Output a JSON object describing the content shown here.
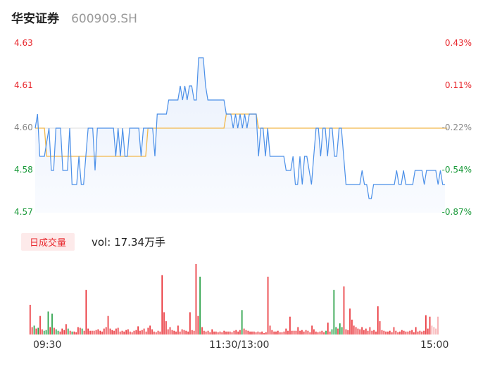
{
  "header": {
    "stock_name": "华安证券",
    "stock_code": "600909.SH"
  },
  "colors": {
    "up": "#e8262c",
    "down": "#1a9a3a",
    "flat": "#888888",
    "price_line": "#4a8fe8",
    "avg_line": "#f2b84b"
  },
  "volume": {
    "badge": "日成交量",
    "label": "vol:",
    "value": "17.34万手"
  },
  "chart_data": [
    {
      "type": "line",
      "xlabel": "",
      "ylabel": "",
      "x_ticks": [
        "09:30",
        "11:30/13:00",
        "15:00"
      ],
      "y_ticks_left": [
        "4.63",
        "4.61",
        "4.60",
        "4.58",
        "4.57"
      ],
      "y_ticks_right": [
        "0.43%",
        "0.11%",
        "-0.22%",
        "-0.54%",
        "-0.87%"
      ],
      "ylim": [
        4.57,
        4.63
      ],
      "prev_close": 4.6,
      "series": [
        {
          "values": [
            4.6,
            4.605,
            4.59,
            4.59,
            4.59,
            4.595,
            4.6,
            4.585,
            4.585,
            4.6,
            4.6,
            4.6,
            4.585,
            4.585,
            4.585,
            4.6,
            4.58,
            4.58,
            4.58,
            4.59,
            4.58,
            4.58,
            4.59,
            4.6,
            4.6,
            4.6,
            4.585,
            4.6,
            4.6,
            4.6,
            4.6,
            4.6,
            4.6,
            4.6,
            4.6,
            4.59,
            4.6,
            4.59,
            4.6,
            4.59,
            4.59,
            4.6,
            4.6,
            4.6,
            4.6,
            4.6,
            4.59,
            4.6,
            4.6,
            4.6,
            4.6,
            4.6,
            4.59,
            4.605,
            4.605,
            4.605,
            4.605,
            4.605,
            4.61,
            4.61,
            4.61,
            4.61,
            4.61,
            4.615,
            4.61,
            4.615,
            4.61,
            4.615,
            4.615,
            4.61,
            4.61,
            4.625,
            4.625,
            4.625,
            4.615,
            4.61,
            4.61,
            4.61,
            4.61,
            4.61,
            4.61,
            4.61,
            4.61,
            4.605,
            4.605,
            4.605,
            4.6,
            4.605,
            4.6,
            4.605,
            4.6,
            4.605,
            4.6,
            4.605,
            4.605,
            4.605,
            4.605,
            4.59,
            4.6,
            4.6,
            4.59,
            4.6,
            4.59,
            4.59,
            4.59,
            4.59,
            4.59,
            4.59,
            4.59,
            4.585,
            4.585,
            4.585,
            4.59,
            4.58,
            4.58,
            4.59,
            4.58,
            4.59,
            4.59,
            4.585,
            4.58,
            4.59,
            4.6,
            4.6,
            4.59,
            4.6,
            4.6,
            4.59,
            4.6,
            4.6,
            4.59,
            4.59,
            4.6,
            4.6,
            4.59,
            4.58,
            4.58,
            4.58,
            4.58,
            4.58,
            4.58,
            4.58,
            4.585,
            4.58,
            4.58,
            4.575,
            4.575,
            4.58,
            4.58,
            4.58,
            4.58,
            4.58,
            4.58,
            4.58,
            4.58,
            4.58,
            4.58,
            4.585,
            4.58,
            4.58,
            4.585,
            4.58,
            4.58,
            4.58,
            4.58,
            4.585,
            4.585,
            4.585,
            4.585,
            4.58,
            4.585,
            4.585,
            4.585,
            4.585,
            4.585,
            4.58,
            4.585,
            4.58,
            4.58
          ]
        },
        {
          "values": [
            4.6,
            4.6,
            4.6,
            4.6,
            4.6,
            4.59,
            4.59,
            4.59,
            4.59,
            4.59,
            4.59,
            4.59,
            4.59,
            4.59,
            4.59,
            4.59,
            4.59,
            4.59,
            4.59,
            4.59,
            4.59,
            4.59,
            4.59,
            4.59,
            4.59,
            4.59,
            4.59,
            4.59,
            4.59,
            4.59,
            4.59,
            4.59,
            4.59,
            4.59,
            4.59,
            4.59,
            4.59,
            4.59,
            4.59,
            4.59,
            4.59,
            4.59,
            4.59,
            4.59,
            4.59,
            4.59,
            4.59,
            4.59,
            4.59,
            4.6,
            4.6,
            4.6,
            4.6,
            4.6,
            4.6,
            4.6,
            4.6,
            4.6,
            4.6,
            4.6,
            4.6,
            4.6,
            4.6,
            4.6,
            4.6,
            4.6,
            4.6,
            4.6,
            4.6,
            4.6,
            4.6,
            4.6,
            4.6,
            4.6,
            4.6,
            4.6,
            4.6,
            4.6,
            4.6,
            4.6,
            4.6,
            4.6,
            4.6,
            4.605,
            4.605,
            4.605,
            4.605,
            4.605,
            4.605,
            4.605,
            4.605,
            4.605,
            4.605,
            4.605,
            4.605,
            4.605,
            4.605,
            4.6,
            4.6,
            4.6,
            4.6,
            4.6,
            4.6,
            4.6,
            4.6,
            4.6,
            4.6,
            4.6,
            4.6,
            4.6,
            4.6,
            4.6,
            4.6,
            4.6,
            4.6,
            4.6,
            4.6,
            4.6,
            4.6,
            4.6,
            4.6,
            4.6,
            4.6,
            4.6,
            4.6,
            4.6,
            4.6,
            4.6,
            4.6,
            4.6,
            4.6,
            4.6,
            4.6,
            4.6,
            4.6,
            4.6,
            4.6,
            4.6,
            4.6,
            4.6,
            4.6,
            4.6,
            4.6,
            4.6,
            4.6,
            4.6,
            4.6,
            4.6,
            4.6,
            4.6,
            4.6,
            4.6,
            4.6,
            4.6,
            4.6,
            4.6,
            4.6,
            4.6,
            4.6,
            4.6,
            4.6,
            4.6,
            4.6,
            4.6,
            4.6,
            4.6,
            4.6,
            4.6,
            4.6,
            4.6,
            4.6,
            4.6,
            4.6,
            4.6,
            4.6,
            4.6,
            4.6,
            4.6,
            4.6,
            4.6
          ]
        }
      ]
    },
    {
      "type": "bar",
      "values": [
        40,
        10,
        12,
        8,
        9,
        25,
        7,
        5,
        6,
        31,
        10,
        28,
        9,
        7,
        5,
        4,
        8,
        6,
        14,
        8,
        5,
        4,
        4,
        3,
        10,
        9,
        8,
        5,
        60,
        8,
        5,
        5,
        5,
        6,
        7,
        5,
        4,
        8,
        10,
        25,
        8,
        6,
        5,
        8,
        9,
        4,
        5,
        4,
        6,
        7,
        4,
        3,
        5,
        6,
        11,
        5,
        6,
        8,
        4,
        9,
        12,
        7,
        4,
        3,
        5,
        4,
        80,
        30,
        18,
        7,
        10,
        6,
        5,
        4,
        12,
        4,
        7,
        6,
        5,
        4,
        30,
        6,
        5,
        95,
        25,
        78,
        10,
        5,
        4,
        5,
        3,
        7,
        4,
        4,
        3,
        4,
        3,
        5,
        4,
        4,
        4,
        3,
        5,
        6,
        4,
        6,
        33,
        8,
        6,
        5,
        4,
        4,
        4,
        3,
        4,
        3,
        4,
        2,
        3,
        78,
        12,
        6,
        4,
        4,
        5,
        3,
        3,
        4,
        8,
        5,
        24,
        5,
        5,
        5,
        10,
        5,
        6,
        4,
        6,
        5,
        3,
        12,
        7,
        4,
        3,
        4,
        5,
        3,
        5,
        16,
        4,
        7,
        60,
        10,
        8,
        15,
        10,
        65,
        7,
        6,
        35,
        20,
        12,
        10,
        8,
        7,
        10,
        6,
        8,
        5,
        10,
        5,
        6,
        4,
        38,
        18,
        6,
        5,
        4,
        4,
        5,
        3,
        10,
        5,
        3,
        4,
        6,
        5,
        4,
        4,
        5,
        6,
        3,
        10,
        4,
        5,
        4,
        5,
        26,
        8,
        24,
        12,
        10,
        8,
        24
      ],
      "directions": [
        "up",
        "up",
        "down",
        "up",
        "down",
        "up",
        "up",
        "down",
        "down",
        "down",
        "up",
        "down",
        "up",
        "down",
        "down",
        "up",
        "up",
        "up",
        "up",
        "down",
        "up",
        "down",
        "up",
        "up",
        "up",
        "up",
        "down",
        "up",
        "up",
        "up",
        "up",
        "up",
        "up",
        "up",
        "up",
        "up",
        "up",
        "up",
        "up",
        "up",
        "up",
        "up",
        "up",
        "up",
        "up",
        "up",
        "up",
        "up",
        "up",
        "up",
        "up",
        "up",
        "up",
        "up",
        "up",
        "up",
        "up",
        "up",
        "up",
        "up",
        "up",
        "up",
        "up",
        "up",
        "up",
        "up",
        "up",
        "up",
        "up",
        "up",
        "up",
        "up",
        "up",
        "up",
        "up",
        "up",
        "up",
        "up",
        "up",
        "up",
        "up",
        "up",
        "up",
        "up",
        "up",
        "down",
        "up",
        "up",
        "up",
        "up",
        "up",
        "up",
        "up",
        "up",
        "up",
        "up",
        "up",
        "up",
        "up",
        "up",
        "up",
        "up",
        "up",
        "up",
        "up",
        "up",
        "down",
        "up",
        "up",
        "up",
        "up",
        "up",
        "up",
        "up",
        "up",
        "up",
        "up",
        "up",
        "up",
        "up",
        "up",
        "up",
        "up",
        "up",
        "up",
        "up",
        "up",
        "up",
        "up",
        "up",
        "up",
        "up",
        "up",
        "up",
        "up",
        "up",
        "up",
        "up",
        "up",
        "up",
        "up",
        "up",
        "up",
        "up",
        "up",
        "up",
        "up",
        "up",
        "down",
        "up",
        "up",
        "down",
        "down",
        "down",
        "up",
        "down",
        "down",
        "up",
        "up",
        "up",
        "up",
        "up",
        "up",
        "up",
        "up",
        "up",
        "up",
        "up",
        "up",
        "up",
        "up",
        "up",
        "up",
        "up",
        "up",
        "up",
        "up",
        "up",
        "up",
        "up",
        "up",
        "up",
        "up",
        "up",
        "up",
        "up",
        "up",
        "up",
        "up",
        "up",
        "up",
        "up",
        "up",
        "up",
        "up",
        "up",
        "up",
        "up",
        "up",
        "up",
        "up",
        "flat"
      ]
    }
  ]
}
